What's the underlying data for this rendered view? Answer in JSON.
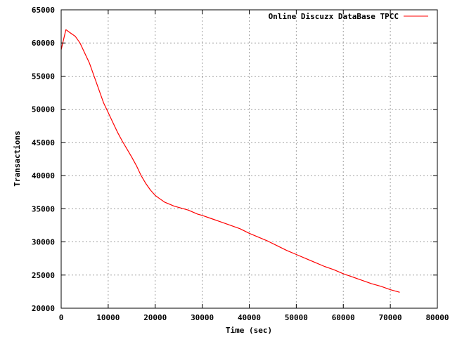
{
  "chart_data": {
    "type": "line",
    "title": "",
    "xlabel": "Time (sec)",
    "ylabel": "Transactions",
    "xlim": [
      0,
      80000
    ],
    "ylim": [
      20000,
      65000
    ],
    "x_ticks": [
      0,
      10000,
      20000,
      30000,
      40000,
      50000,
      60000,
      70000,
      80000
    ],
    "y_ticks": [
      20000,
      25000,
      30000,
      35000,
      40000,
      45000,
      50000,
      55000,
      60000,
      65000
    ],
    "grid": true,
    "legend_position": "top-right",
    "series": [
      {
        "name": "Online Discuzx DataBase TPCC",
        "color": "#ff0000",
        "x": [
          0,
          1000,
          2000,
          3000,
          4000,
          5000,
          6000,
          7000,
          8000,
          9000,
          10000,
          11000,
          12000,
          13000,
          14000,
          15000,
          16000,
          17000,
          18000,
          19000,
          20000,
          21000,
          22000,
          23000,
          24000,
          25000,
          26000,
          27000,
          28000,
          29000,
          30000,
          32000,
          34000,
          36000,
          38000,
          40000,
          42000,
          44000,
          46000,
          48000,
          50000,
          52000,
          54000,
          56000,
          58000,
          60000,
          62000,
          64000,
          66000,
          68000,
          70000,
          72000
        ],
        "values": [
          59000,
          62000,
          61500,
          61000,
          60000,
          58500,
          57000,
          55000,
          53000,
          51000,
          49500,
          48000,
          46500,
          45200,
          44000,
          42800,
          41500,
          40000,
          38800,
          37800,
          37000,
          36500,
          36000,
          35700,
          35400,
          35200,
          35000,
          34800,
          34500,
          34200,
          34000,
          33500,
          33000,
          32500,
          32000,
          31300,
          30700,
          30100,
          29400,
          28700,
          28100,
          27500,
          26900,
          26300,
          25800,
          25200,
          24700,
          24200,
          23700,
          23300,
          22800,
          22400
        ]
      }
    ]
  }
}
